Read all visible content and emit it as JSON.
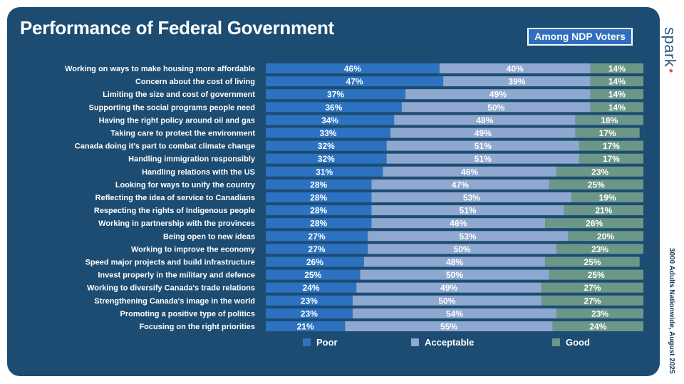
{
  "header": {
    "title": "Performance of Federal Government",
    "badge": "Among NDP Voters",
    "brand": "spark",
    "brand_mark": "*",
    "side_note": "3000 Adults Nationwide, August 2025"
  },
  "colors": {
    "background": "#1c4c72",
    "poor": "#2c72c0",
    "acceptable": "#8fa8cf",
    "good": "#6b9789",
    "text": "#ffffff",
    "brand": "#2a5a86",
    "brand_mark": "#e0303a"
  },
  "chart_data": {
    "type": "bar",
    "orientation": "horizontal",
    "stacked": true,
    "title": "Performance of Federal Government",
    "categories": [
      "Working on ways to make housing more affordable",
      "Concern about the cost of living",
      "Limiting the size and cost of government",
      "Supporting the social programs people need",
      "Having the right policy around oil and gas",
      "Taking care to protect the environment",
      "Canada doing it's part to combat climate change",
      "Handling immigration responsibly",
      "Handling relations with the US",
      "Looking for ways to unify the country",
      "Reflecting the idea of service to Canadians",
      "Respecting the rights of Indigenous people",
      "Working in partnership with the provinces",
      "Being open to new ideas",
      "Working to improve the economy",
      "Speed major projects and build infrastructure",
      "Invest properly in the military and defence",
      "Working to diversify Canada's trade relations",
      "Strengthening Canada's image in the world",
      "Promoting a positive type of politics",
      "Focusing on the right priorities"
    ],
    "series": [
      {
        "name": "Poor",
        "values": [
          46,
          47,
          37,
          36,
          34,
          33,
          32,
          32,
          31,
          28,
          28,
          28,
          28,
          27,
          27,
          26,
          25,
          24,
          23,
          23,
          21
        ]
      },
      {
        "name": "Acceptable",
        "values": [
          40,
          39,
          49,
          50,
          48,
          49,
          51,
          51,
          46,
          47,
          53,
          51,
          46,
          53,
          50,
          48,
          50,
          49,
          50,
          54,
          55
        ]
      },
      {
        "name": "Good",
        "values": [
          14,
          14,
          14,
          14,
          18,
          17,
          17,
          17,
          23,
          25,
          19,
          21,
          26,
          20,
          23,
          25,
          25,
          27,
          27,
          23,
          24
        ]
      }
    ],
    "value_suffix": "%",
    "legend_position": "bottom",
    "grid": false
  }
}
